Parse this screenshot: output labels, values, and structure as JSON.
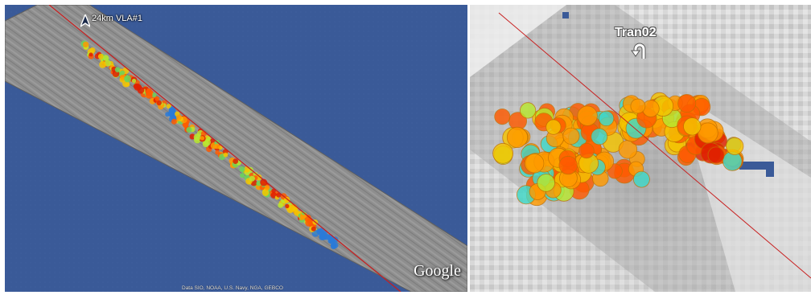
{
  "left_map": {
    "marker_label": "24km VLA#1",
    "logo": "Google",
    "attribution": "Data SIO, NOAA, U.S. Navy, NGA, GEBCO",
    "marker_icon": "navigation-arrow-icon",
    "colors": {
      "ocean": "#3a5a98",
      "swath": "#8c8c8c",
      "track_line": "#c81e1e"
    }
  },
  "right_map": {
    "transect_label": "Tran02",
    "turn_icon": "u-turn-arrow-icon",
    "colors": {
      "background": "#d8d8d8",
      "track_line": "#c81e1e",
      "marker": "#3a5a98"
    }
  },
  "detection_colors": [
    "#f5c400",
    "#ff9a00",
    "#ff5a00",
    "#e02000",
    "#b8e830",
    "#6ad65a",
    "#40d8c8",
    "#2a7ad8"
  ]
}
